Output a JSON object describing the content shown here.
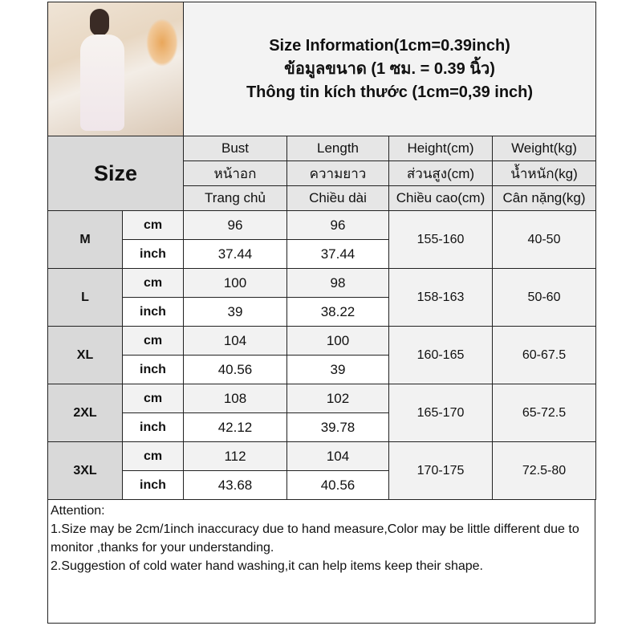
{
  "photo": {
    "description_icon": "product-photo"
  },
  "title": {
    "line1": "Size Information(1cm=0.39inch)",
    "line2": "ข้อมูลขนาด (1 ซม. = 0.39 นิ้ว)",
    "line3": "Thông tin kích thước (1cm=0,39 inch)"
  },
  "header": {
    "size_label": "Size",
    "columns": [
      {
        "en": "Bust",
        "th": "หน้าอก",
        "vi": "Trang chủ"
      },
      {
        "en": "Length",
        "th": "ความยาว",
        "vi": "Chiều dài"
      },
      {
        "en": "Height(cm)",
        "th": "ส่วนสูง(cm)",
        "vi": "Chiều cao(cm)"
      },
      {
        "en": "Weight(kg)",
        "th": "น้ำหนัก(kg)",
        "vi": "Cân nặng(kg)"
      }
    ]
  },
  "units": {
    "cm": "cm",
    "inch": "inch"
  },
  "rows": [
    {
      "size": "M",
      "bust_cm": "96",
      "length_cm": "96",
      "bust_in": "37.44",
      "length_in": "37.44",
      "height": "155-160",
      "weight": "40-50"
    },
    {
      "size": "L",
      "bust_cm": "100",
      "length_cm": "98",
      "bust_in": "39",
      "length_in": "38.22",
      "height": "158-163",
      "weight": "50-60"
    },
    {
      "size": "XL",
      "bust_cm": "104",
      "length_cm": "100",
      "bust_in": "40.56",
      "length_in": "39",
      "height": "160-165",
      "weight": "60-67.5"
    },
    {
      "size": "2XL",
      "bust_cm": "108",
      "length_cm": "102",
      "bust_in": "42.12",
      "length_in": "39.78",
      "height": "165-170",
      "weight": "65-72.5"
    },
    {
      "size": "3XL",
      "bust_cm": "112",
      "length_cm": "104",
      "bust_in": "43.68",
      "length_in": "40.56",
      "height": "170-175",
      "weight": "72.5-80"
    }
  ],
  "attention": {
    "heading": "Attention:",
    "line1": "1.Size may be 2cm/1inch inaccuracy due to hand measure,Color may be little different due to monitor ,thanks for your understanding.",
    "line2": "2.Suggestion of cold water hand washing,it can help items keep their shape."
  }
}
